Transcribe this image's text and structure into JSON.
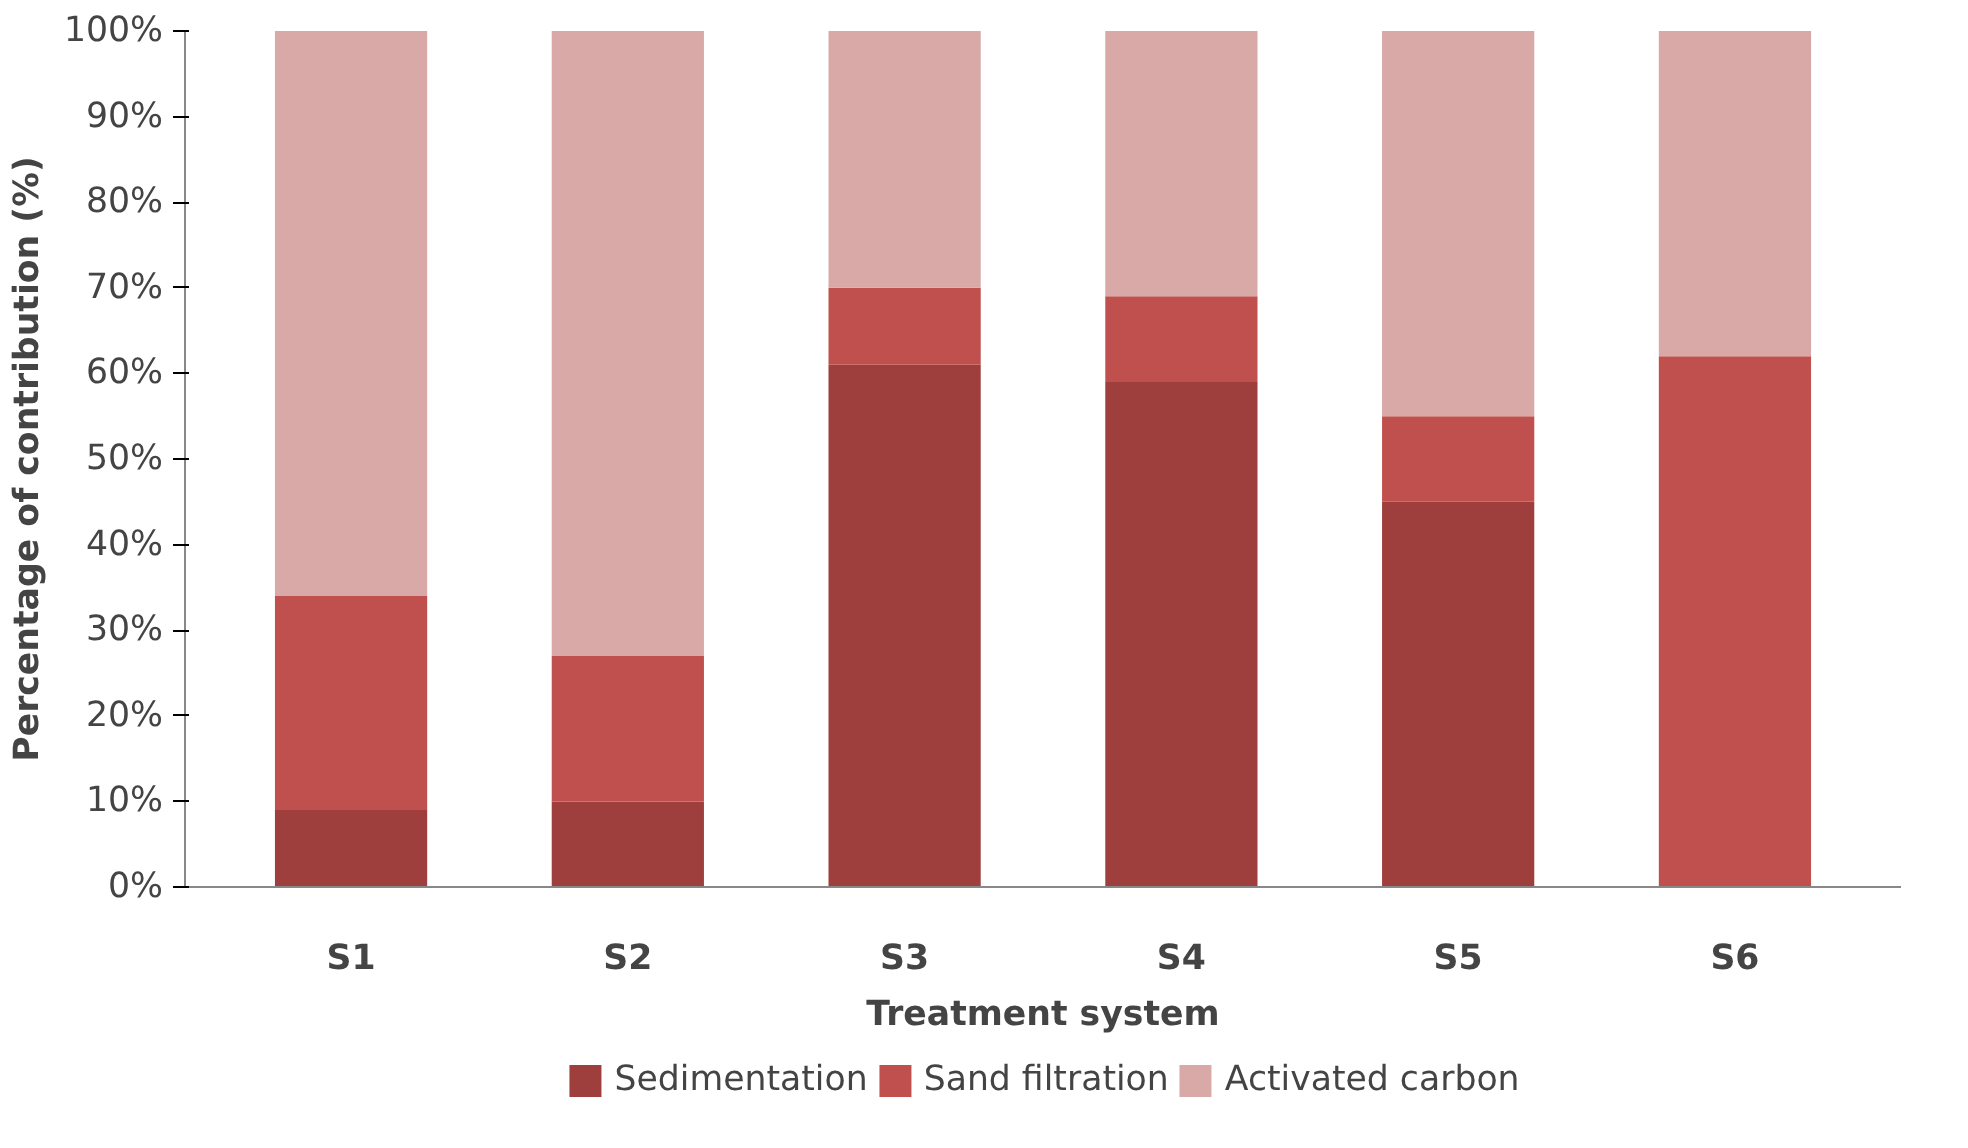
{
  "chart_data": {
    "type": "bar",
    "stacked": true,
    "xlabel": "Treatment system",
    "ylabel": "Percentage of contribution (%)",
    "categories": [
      "S1",
      "S2",
      "S3",
      "S4",
      "S5",
      "S6"
    ],
    "series": [
      {
        "name": "Sedimentation",
        "color": "#9e3f3d",
        "values": [
          9,
          10,
          61,
          59,
          45,
          0
        ]
      },
      {
        "name": "Sand filtration",
        "color": "#c0504d",
        "values": [
          25,
          17,
          9,
          10,
          10,
          62
        ]
      },
      {
        "name": "Activated carbon",
        "color": "#d9a9a8",
        "values": [
          66,
          73,
          30,
          31,
          45,
          38
        ]
      }
    ],
    "ylim": [
      0,
      100
    ],
    "yticks": [
      {
        "value": 0,
        "label": "0%"
      },
      {
        "value": 10,
        "label": "10%"
      },
      {
        "value": 20,
        "label": "20%"
      },
      {
        "value": 30,
        "label": "30%"
      },
      {
        "value": 40,
        "label": "40%"
      },
      {
        "value": 50,
        "label": "50%"
      },
      {
        "value": 60,
        "label": "60%"
      },
      {
        "value": 70,
        "label": "70%"
      },
      {
        "value": 80,
        "label": "80%"
      },
      {
        "value": 90,
        "label": "90%"
      },
      {
        "value": 100,
        "label": "100%"
      }
    ],
    "grid": false,
    "legend": "bottom"
  }
}
